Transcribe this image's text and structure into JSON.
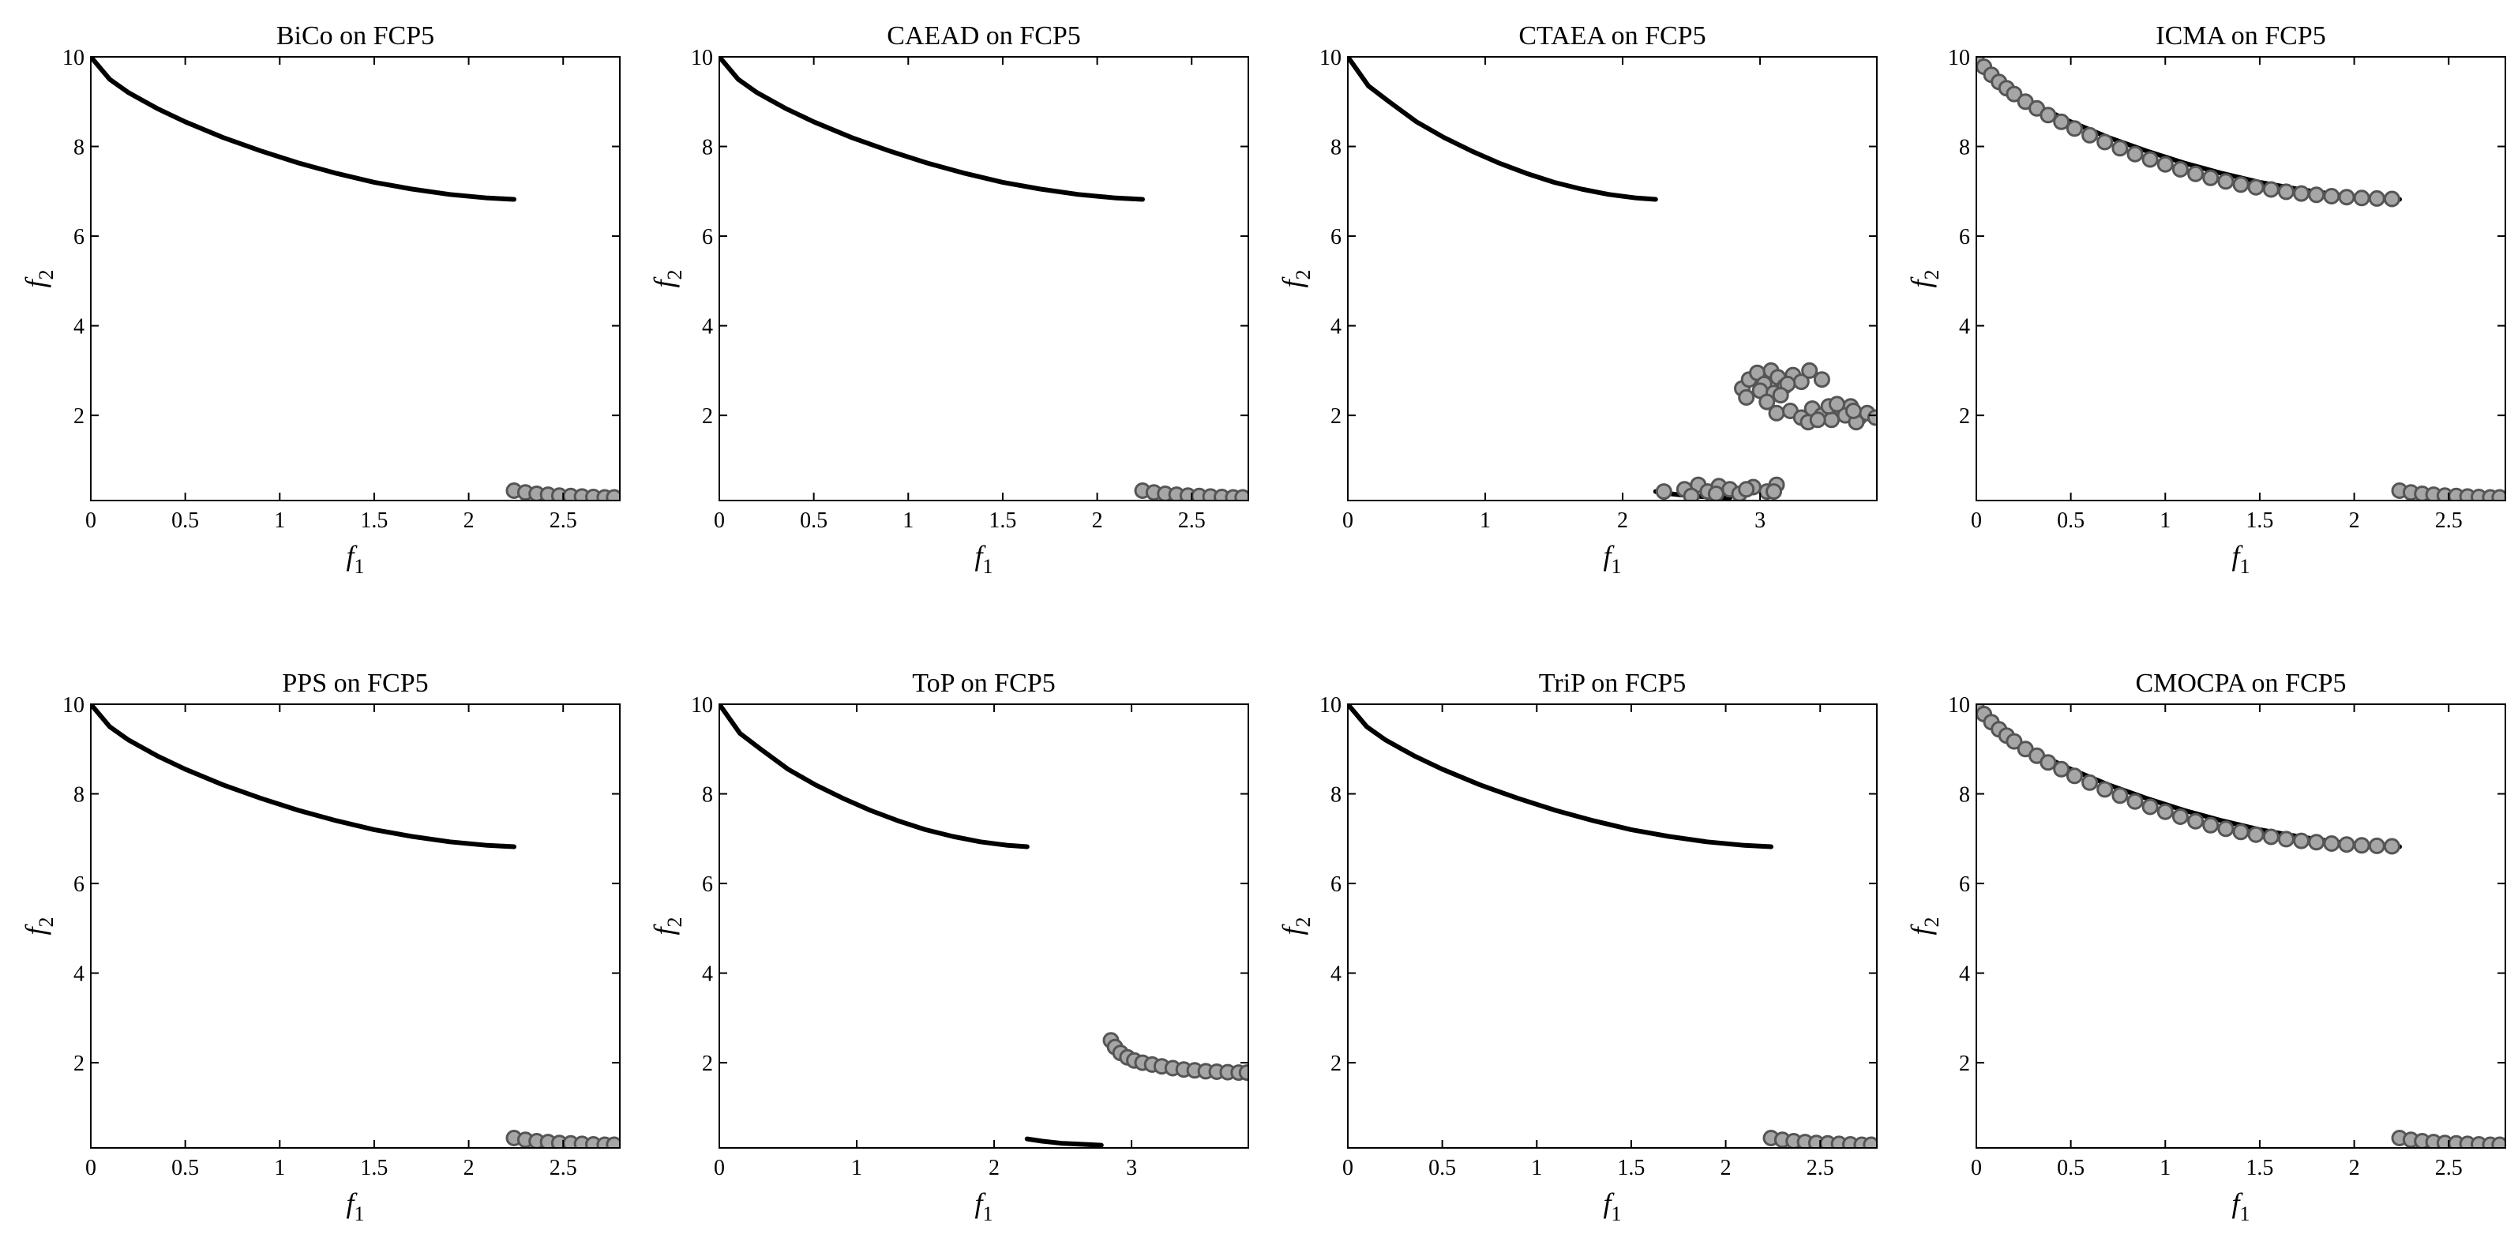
{
  "chart_data": [
    {
      "type": "scatter",
      "title": "BiCo on FCP5",
      "xlabel": "f",
      "xlabel_sub": "1",
      "ylabel": "f",
      "ylabel_sub": "2",
      "xlim": [
        0,
        2.8
      ],
      "ylim": [
        0.1,
        10
      ],
      "xticks": [
        0,
        0.5,
        1,
        1.5,
        2,
        2.5
      ],
      "yticks": [
        2,
        4,
        6,
        8,
        10
      ],
      "pareto_front": [
        {
          "f1": [
            0,
            0.1,
            0.2,
            0.35,
            0.5,
            0.7,
            0.9,
            1.1,
            1.3,
            1.5,
            1.7,
            1.9,
            2.1,
            2.24
          ],
          "f2": [
            10,
            9.5,
            9.2,
            8.85,
            8.55,
            8.2,
            7.9,
            7.63,
            7.4,
            7.2,
            7.05,
            6.93,
            6.85,
            6.82
          ]
        },
        {
          "f1": [
            2.24,
            2.3,
            2.4,
            2.5,
            2.6,
            2.7,
            2.78
          ],
          "f2": [
            0.3,
            0.26,
            0.22,
            0.2,
            0.18,
            0.17,
            0.16
          ]
        }
      ],
      "solutions": {
        "f1": [
          2.24,
          2.3,
          2.36,
          2.42,
          2.48,
          2.54,
          2.6,
          2.66,
          2.72,
          2.77
        ],
        "f2": [
          0.32,
          0.28,
          0.25,
          0.23,
          0.21,
          0.2,
          0.19,
          0.18,
          0.17,
          0.17
        ]
      }
    },
    {
      "type": "scatter",
      "title": "CAEAD on FCP5",
      "xlabel": "f",
      "xlabel_sub": "1",
      "ylabel": "f",
      "ylabel_sub": "2",
      "xlim": [
        0,
        2.8
      ],
      "ylim": [
        0.1,
        10
      ],
      "xticks": [
        0,
        0.5,
        1,
        1.5,
        2,
        2.5
      ],
      "yticks": [
        2,
        4,
        6,
        8,
        10
      ],
      "pareto_front": [
        {
          "f1": [
            0,
            0.1,
            0.2,
            0.35,
            0.5,
            0.7,
            0.9,
            1.1,
            1.3,
            1.5,
            1.7,
            1.9,
            2.1,
            2.24
          ],
          "f2": [
            10,
            9.5,
            9.2,
            8.85,
            8.55,
            8.2,
            7.9,
            7.63,
            7.4,
            7.2,
            7.05,
            6.93,
            6.85,
            6.82
          ]
        },
        {
          "f1": [
            2.24,
            2.3,
            2.4,
            2.5,
            2.6,
            2.7,
            2.78
          ],
          "f2": [
            0.3,
            0.26,
            0.22,
            0.2,
            0.18,
            0.17,
            0.16
          ]
        }
      ],
      "solutions": {
        "f1": [
          2.24,
          2.3,
          2.36,
          2.42,
          2.48,
          2.54,
          2.6,
          2.66,
          2.72,
          2.77
        ],
        "f2": [
          0.32,
          0.28,
          0.25,
          0.23,
          0.21,
          0.2,
          0.19,
          0.18,
          0.17,
          0.17
        ]
      }
    },
    {
      "type": "scatter",
      "title": "CTAEA on FCP5",
      "xlabel": "f",
      "xlabel_sub": "1",
      "ylabel": "f",
      "ylabel_sub": "2",
      "xlim": [
        0,
        3.85
      ],
      "ylim": [
        0.1,
        10
      ],
      "xticks": [
        0,
        1,
        2,
        3
      ],
      "yticks": [
        2,
        4,
        6,
        8,
        10
      ],
      "pareto_front": [
        {
          "f1": [
            0,
            0.15,
            0.3,
            0.5,
            0.7,
            0.9,
            1.1,
            1.3,
            1.5,
            1.7,
            1.9,
            2.1,
            2.24
          ],
          "f2": [
            10,
            9.35,
            9.0,
            8.55,
            8.2,
            7.9,
            7.63,
            7.4,
            7.2,
            7.05,
            6.93,
            6.85,
            6.82
          ]
        },
        {
          "f1": [
            2.24,
            2.35,
            2.5,
            2.65,
            2.78
          ],
          "f2": [
            0.3,
            0.25,
            0.2,
            0.18,
            0.16
          ]
        }
      ],
      "solutions": {
        "f1": [
          2.3,
          2.45,
          2.55,
          2.62,
          2.7,
          2.78,
          2.85,
          2.95,
          3.05,
          3.12,
          2.5,
          2.68,
          2.9,
          3.1,
          2.87,
          2.92,
          2.98,
          3.03,
          3.08,
          3.13,
          3.18,
          3.24,
          3.3,
          3.36,
          2.9,
          3.0,
          3.1,
          3.2,
          3.05,
          3.15,
          3.45,
          3.12,
          3.22,
          3.3,
          3.38,
          3.45,
          3.52,
          3.6,
          3.66,
          3.72,
          3.78,
          3.84,
          3.35,
          3.5,
          3.62,
          3.7,
          3.42,
          3.56,
          3.68
        ],
        "f2": [
          0.3,
          0.35,
          0.45,
          0.3,
          0.42,
          0.35,
          0.25,
          0.4,
          0.3,
          0.45,
          0.2,
          0.25,
          0.35,
          0.3,
          2.6,
          2.8,
          2.95,
          2.7,
          3.0,
          2.85,
          2.65,
          2.9,
          2.75,
          3.0,
          2.4,
          2.55,
          2.5,
          2.7,
          2.3,
          2.45,
          2.8,
          2.05,
          2.1,
          1.95,
          2.15,
          2.0,
          1.9,
          2.1,
          2.2,
          1.95,
          2.05,
          1.95,
          1.85,
          2.2,
          2.0,
          1.85,
          1.9,
          2.25,
          2.1
        ]
      }
    },
    {
      "type": "scatter",
      "title": "ICMA on FCP5",
      "xlabel": "f",
      "xlabel_sub": "1",
      "ylabel": "f",
      "ylabel_sub": "2",
      "xlim": [
        0,
        2.8
      ],
      "ylim": [
        0.1,
        10
      ],
      "xticks": [
        0,
        0.5,
        1,
        1.5,
        2,
        2.5
      ],
      "yticks": [
        2,
        4,
        6,
        8,
        10
      ],
      "pareto_front": [
        {
          "f1": [
            0,
            0.1,
            0.2,
            0.35,
            0.5,
            0.7,
            0.9,
            1.1,
            1.3,
            1.5,
            1.7,
            1.9,
            2.1,
            2.24
          ],
          "f2": [
            10,
            9.5,
            9.2,
            8.85,
            8.55,
            8.2,
            7.9,
            7.63,
            7.4,
            7.2,
            7.05,
            6.93,
            6.85,
            6.82
          ]
        },
        {
          "f1": [
            2.24,
            2.3,
            2.4,
            2.5,
            2.6,
            2.7,
            2.78
          ],
          "f2": [
            0.3,
            0.26,
            0.22,
            0.2,
            0.18,
            0.17,
            0.16
          ]
        }
      ],
      "solutions": {
        "f1": [
          0.0,
          0.04,
          0.08,
          0.12,
          0.16,
          0.2,
          0.26,
          0.32,
          0.38,
          0.45,
          0.52,
          0.6,
          0.68,
          0.76,
          0.84,
          0.92,
          1.0,
          1.08,
          1.16,
          1.24,
          1.32,
          1.4,
          1.48,
          1.56,
          1.64,
          1.72,
          1.8,
          1.88,
          1.96,
          2.04,
          2.12,
          2.2,
          2.24,
          2.3,
          2.36,
          2.42,
          2.48,
          2.54,
          2.6,
          2.66,
          2.72,
          2.77
        ],
        "f2": [
          10,
          9.78,
          9.6,
          9.44,
          9.3,
          9.17,
          9.0,
          8.85,
          8.7,
          8.55,
          8.4,
          8.25,
          8.1,
          7.96,
          7.83,
          7.71,
          7.6,
          7.49,
          7.39,
          7.3,
          7.22,
          7.15,
          7.09,
          7.04,
          6.99,
          6.95,
          6.92,
          6.89,
          6.87,
          6.85,
          6.84,
          6.83,
          0.32,
          0.28,
          0.25,
          0.23,
          0.21,
          0.2,
          0.19,
          0.18,
          0.17,
          0.17
        ]
      }
    },
    {
      "type": "scatter",
      "title": "PPS on FCP5",
      "xlabel": "f",
      "xlabel_sub": "1",
      "ylabel": "f",
      "ylabel_sub": "2",
      "xlim": [
        0,
        2.8
      ],
      "ylim": [
        0.1,
        10
      ],
      "xticks": [
        0,
        0.5,
        1,
        1.5,
        2,
        2.5
      ],
      "yticks": [
        2,
        4,
        6,
        8,
        10
      ],
      "pareto_front": [
        {
          "f1": [
            0,
            0.1,
            0.2,
            0.35,
            0.5,
            0.7,
            0.9,
            1.1,
            1.3,
            1.5,
            1.7,
            1.9,
            2.1,
            2.24
          ],
          "f2": [
            10,
            9.5,
            9.2,
            8.85,
            8.55,
            8.2,
            7.9,
            7.63,
            7.4,
            7.2,
            7.05,
            6.93,
            6.85,
            6.82
          ]
        },
        {
          "f1": [
            2.24,
            2.3,
            2.4,
            2.5,
            2.6,
            2.7,
            2.78
          ],
          "f2": [
            0.3,
            0.26,
            0.22,
            0.2,
            0.18,
            0.17,
            0.16
          ]
        }
      ],
      "solutions": {
        "f1": [
          2.24,
          2.3,
          2.36,
          2.42,
          2.48,
          2.54,
          2.6,
          2.66,
          2.72,
          2.77
        ],
        "f2": [
          0.32,
          0.28,
          0.25,
          0.23,
          0.21,
          0.2,
          0.19,
          0.18,
          0.17,
          0.17
        ]
      }
    },
    {
      "type": "scatter",
      "title": "ToP on FCP5",
      "xlabel": "f",
      "xlabel_sub": "1",
      "ylabel": "f",
      "ylabel_sub": "2",
      "xlim": [
        0,
        3.85
      ],
      "ylim": [
        0.1,
        10
      ],
      "xticks": [
        0,
        1,
        2,
        3
      ],
      "yticks": [
        2,
        4,
        6,
        8,
        10
      ],
      "pareto_front": [
        {
          "f1": [
            0,
            0.15,
            0.3,
            0.5,
            0.7,
            0.9,
            1.1,
            1.3,
            1.5,
            1.7,
            1.9,
            2.1,
            2.24
          ],
          "f2": [
            10,
            9.35,
            9.0,
            8.55,
            8.2,
            7.9,
            7.63,
            7.4,
            7.2,
            7.05,
            6.93,
            6.85,
            6.82
          ]
        },
        {
          "f1": [
            2.24,
            2.35,
            2.5,
            2.65,
            2.78
          ],
          "f2": [
            0.3,
            0.25,
            0.2,
            0.18,
            0.16
          ]
        }
      ],
      "solutions": {
        "f1": [
          2.85,
          2.88,
          2.92,
          2.97,
          3.02,
          3.08,
          3.15,
          3.22,
          3.3,
          3.38,
          3.46,
          3.54,
          3.62,
          3.7,
          3.78,
          3.84
        ],
        "f2": [
          2.5,
          2.35,
          2.22,
          2.12,
          2.05,
          2.0,
          1.96,
          1.92,
          1.88,
          1.85,
          1.83,
          1.81,
          1.8,
          1.79,
          1.78,
          1.78
        ]
      }
    },
    {
      "type": "scatter",
      "title": "TriP on FCP5",
      "xlabel": "f",
      "xlabel_sub": "1",
      "ylabel": "f",
      "ylabel_sub": "2",
      "xlim": [
        0,
        2.8
      ],
      "ylim": [
        0.1,
        10
      ],
      "xticks": [
        0,
        0.5,
        1,
        1.5,
        2,
        2.5
      ],
      "yticks": [
        2,
        4,
        6,
        8,
        10
      ],
      "pareto_front": [
        {
          "f1": [
            0,
            0.1,
            0.2,
            0.35,
            0.5,
            0.7,
            0.9,
            1.1,
            1.3,
            1.5,
            1.7,
            1.9,
            2.1,
            2.24
          ],
          "f2": [
            10,
            9.5,
            9.2,
            8.85,
            8.55,
            8.2,
            7.9,
            7.63,
            7.4,
            7.2,
            7.05,
            6.93,
            6.85,
            6.82
          ]
        },
        {
          "f1": [
            2.24,
            2.3,
            2.4,
            2.5,
            2.6,
            2.7,
            2.78
          ],
          "f2": [
            0.3,
            0.26,
            0.22,
            0.2,
            0.18,
            0.17,
            0.16
          ]
        }
      ],
      "solutions": {
        "f1": [
          2.24,
          2.3,
          2.36,
          2.42,
          2.48,
          2.54,
          2.6,
          2.66,
          2.72,
          2.77
        ],
        "f2": [
          0.32,
          0.28,
          0.25,
          0.23,
          0.21,
          0.2,
          0.19,
          0.18,
          0.17,
          0.17
        ]
      }
    },
    {
      "type": "scatter",
      "title": "CMOCPA on FCP5",
      "xlabel": "f",
      "xlabel_sub": "1",
      "ylabel": "f",
      "ylabel_sub": "2",
      "xlim": [
        0,
        2.8
      ],
      "ylim": [
        0.1,
        10
      ],
      "xticks": [
        0,
        0.5,
        1,
        1.5,
        2,
        2.5
      ],
      "yticks": [
        2,
        4,
        6,
        8,
        10
      ],
      "pareto_front": [
        {
          "f1": [
            0,
            0.1,
            0.2,
            0.35,
            0.5,
            0.7,
            0.9,
            1.1,
            1.3,
            1.5,
            1.7,
            1.9,
            2.1,
            2.24
          ],
          "f2": [
            10,
            9.5,
            9.2,
            8.85,
            8.55,
            8.2,
            7.9,
            7.63,
            7.4,
            7.2,
            7.05,
            6.93,
            6.85,
            6.82
          ]
        },
        {
          "f1": [
            2.24,
            2.3,
            2.4,
            2.5,
            2.6,
            2.7,
            2.78
          ],
          "f2": [
            0.3,
            0.26,
            0.22,
            0.2,
            0.18,
            0.17,
            0.16
          ]
        }
      ],
      "solutions": {
        "f1": [
          0.0,
          0.04,
          0.08,
          0.12,
          0.16,
          0.2,
          0.26,
          0.32,
          0.38,
          0.45,
          0.52,
          0.6,
          0.68,
          0.76,
          0.84,
          0.92,
          1.0,
          1.08,
          1.16,
          1.24,
          1.32,
          1.4,
          1.48,
          1.56,
          1.64,
          1.72,
          1.8,
          1.88,
          1.96,
          2.04,
          2.12,
          2.2,
          2.24,
          2.3,
          2.36,
          2.42,
          2.48,
          2.54,
          2.6,
          2.66,
          2.72,
          2.77
        ],
        "f2": [
          10,
          9.78,
          9.6,
          9.44,
          9.3,
          9.17,
          9.0,
          8.85,
          8.7,
          8.55,
          8.4,
          8.25,
          8.1,
          7.96,
          7.83,
          7.71,
          7.6,
          7.49,
          7.39,
          7.3,
          7.22,
          7.15,
          7.09,
          7.04,
          6.99,
          6.95,
          6.92,
          6.89,
          6.87,
          6.85,
          6.84,
          6.83,
          0.32,
          0.28,
          0.25,
          0.23,
          0.21,
          0.2,
          0.19,
          0.18,
          0.17,
          0.17
        ]
      }
    }
  ],
  "colors": {
    "pareto_front": "#000000",
    "solution_fill": "#a6a6a6",
    "solution_edge": "#555555",
    "axes": "#000000"
  }
}
